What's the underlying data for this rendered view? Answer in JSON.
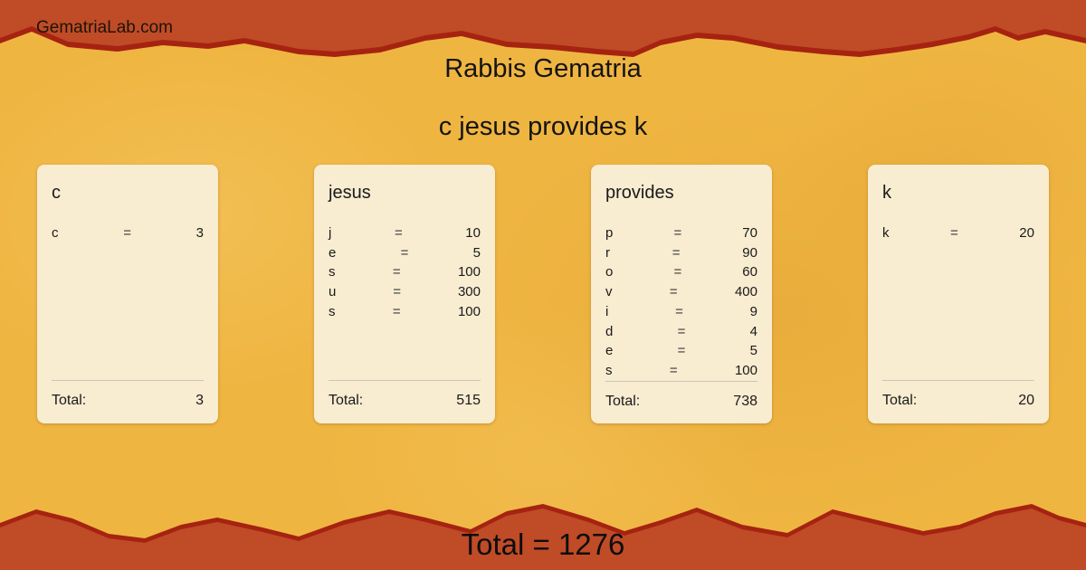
{
  "brand": "GematriaLab.com",
  "title": "Rabbis Gematria",
  "phrase": "c jesus provides k",
  "equals_sign": "=",
  "card_total_label": "Total:",
  "grand_total": "Total = 1276",
  "colors": {
    "band_red": "#c04b27",
    "band_edge": "#a52310",
    "bg_yellow": "#efb541",
    "card_bg": "#f8ecd1",
    "text_dark": "#1a1a1a",
    "divider": "#cbc6ba"
  },
  "cards": [
    {
      "word": "c",
      "rows": [
        {
          "letter": "c",
          "value": 3
        }
      ],
      "total": 3
    },
    {
      "word": "jesus",
      "rows": [
        {
          "letter": "j",
          "value": 10
        },
        {
          "letter": "e",
          "value": 5
        },
        {
          "letter": "s",
          "value": 100
        },
        {
          "letter": "u",
          "value": 300
        },
        {
          "letter": "s",
          "value": 100
        }
      ],
      "total": 515
    },
    {
      "word": "provides",
      "rows": [
        {
          "letter": "p",
          "value": 70
        },
        {
          "letter": "r",
          "value": 90
        },
        {
          "letter": "o",
          "value": 60
        },
        {
          "letter": "v",
          "value": 400
        },
        {
          "letter": "i",
          "value": 9
        },
        {
          "letter": "d",
          "value": 4
        },
        {
          "letter": "e",
          "value": 5
        },
        {
          "letter": "s",
          "value": 100
        }
      ],
      "total": 738
    },
    {
      "word": "k",
      "rows": [
        {
          "letter": "k",
          "value": 20
        }
      ],
      "total": 20
    }
  ]
}
